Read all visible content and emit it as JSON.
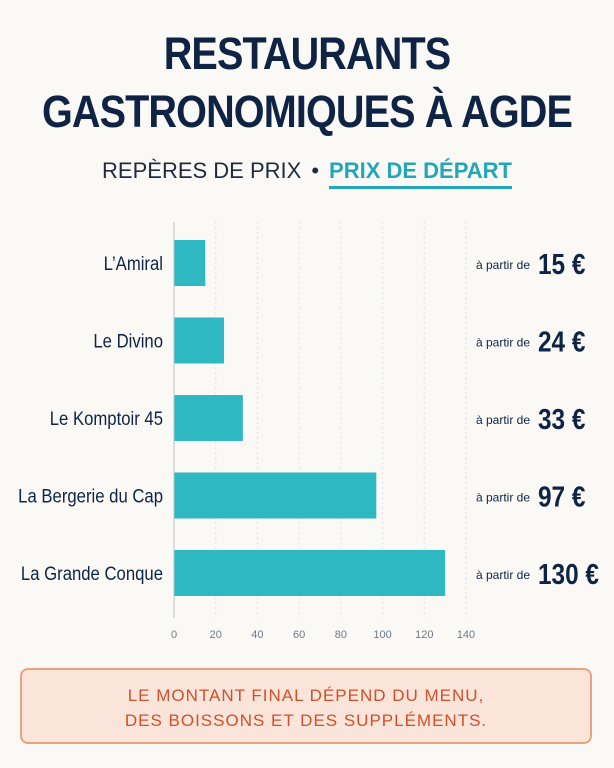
{
  "header": {
    "title_line1": "RESTAURANTS",
    "title_line2": "GASTRONOMIQUES À AGDE",
    "subtitle_main": "REPÈRES DE PRIX",
    "subtitle_separator": "•",
    "subtitle_accent": "PRIX DE DÉPART"
  },
  "note": {
    "line1": "LE MONTANT FINAL DÉPEND DU MENU,",
    "line2": "DES BOISSONS ET DES SUPPLÉMENTS."
  },
  "colors": {
    "bar": "#2db8c2",
    "title": "#0f2445",
    "accent": "#22a7b8",
    "note_text": "#d1502b"
  },
  "chart_data": {
    "type": "bar",
    "orientation": "horizontal",
    "categories": [
      "L’Amiral",
      "Le Divino",
      "Le Komptoir 45",
      "La Bergerie du Cap",
      "La Grande Conque"
    ],
    "values": [
      15,
      24,
      33,
      97,
      130
    ],
    "value_labels": [
      {
        "prefix": "à partir de",
        "amount": "15 €"
      },
      {
        "prefix": "à partir de",
        "amount": "24 €"
      },
      {
        "prefix": "à partir de",
        "amount": "33 €"
      },
      {
        "prefix": "à partir de",
        "amount": "97 €"
      },
      {
        "prefix": "à partir de",
        "amount": "130 €"
      }
    ],
    "xlim": [
      0,
      140
    ],
    "xticks": [
      0,
      20,
      40,
      60,
      80,
      100,
      120,
      140
    ],
    "grid": true,
    "title": "",
    "xlabel": "",
    "ylabel": ""
  }
}
